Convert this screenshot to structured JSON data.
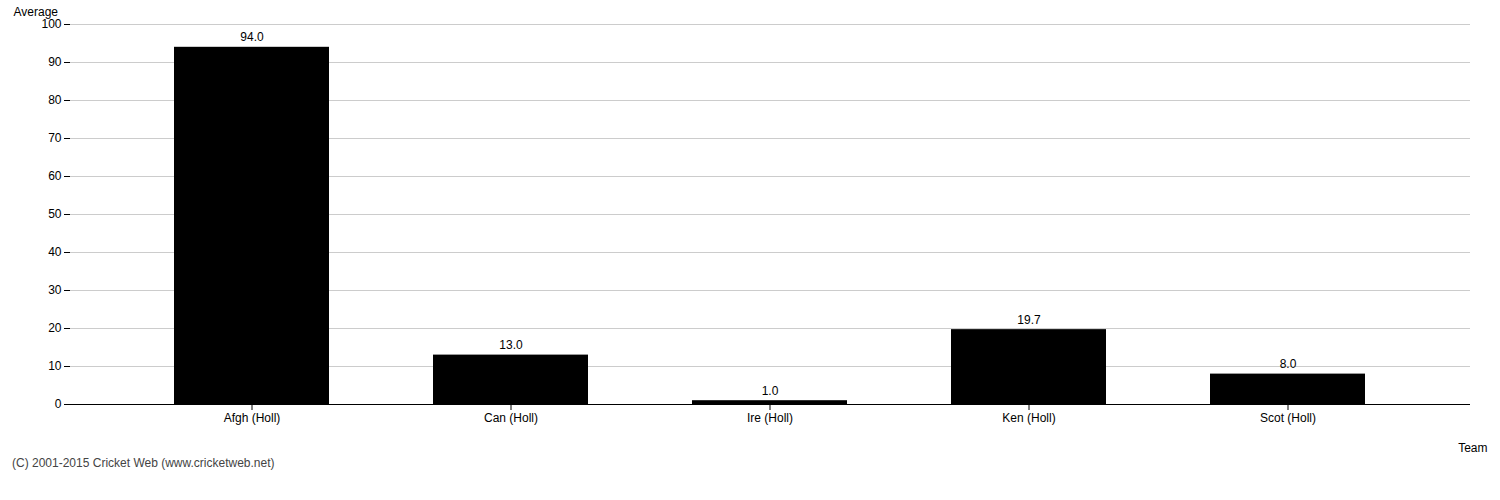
{
  "chart_data": {
    "type": "bar",
    "categories": [
      "Afgh (Holl)",
      "Can (Holl)",
      "Ire (Holl)",
      "Ken (Holl)",
      "Scot (Holl)"
    ],
    "values": [
      94.0,
      13.0,
      1.0,
      19.7,
      8.0
    ],
    "value_labels": [
      "94.0",
      "13.0",
      "1.0",
      "19.7",
      "8.0"
    ],
    "data_labels": true,
    "xlabel": "Team",
    "ylabel": "Average",
    "ylim": [
      0,
      100
    ],
    "yticks": [
      0,
      10,
      20,
      30,
      40,
      50,
      60,
      70,
      80,
      90,
      100
    ],
    "grid": true,
    "footer": "(C) 2001-2015 Cricket Web (www.cricketweb.net)"
  }
}
